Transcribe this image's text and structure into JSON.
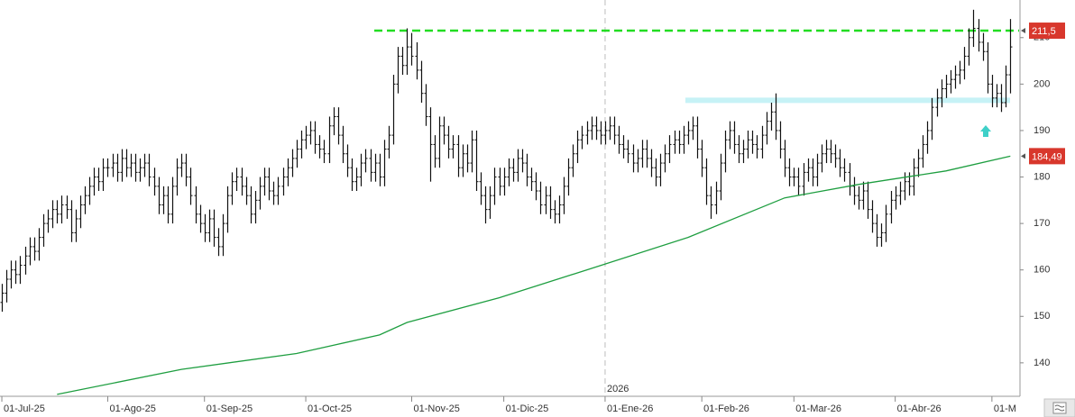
{
  "chart_data": {
    "type": "ohlc",
    "ylim": [
      132.8,
      218.1
    ],
    "yticks": [
      140,
      150,
      160,
      170,
      180,
      190,
      200,
      210
    ],
    "xlim": [
      -0.4,
      220.9
    ],
    "xticks": [
      {
        "value": 0,
        "label": "01-Jul-25"
      },
      {
        "value": 23,
        "label": "01-Ago-25"
      },
      {
        "value": 44,
        "label": "01-Sep-25"
      },
      {
        "value": 66,
        "label": "01-Oct-25"
      },
      {
        "value": 89,
        "label": "01-Nov-25"
      },
      {
        "value": 109,
        "label": "01-Dic-25"
      },
      {
        "value": 131,
        "label": "01-Ene-26"
      },
      {
        "value": 152,
        "label": "01-Feb-26"
      },
      {
        "value": 172,
        "label": "01-Mar-26"
      },
      {
        "value": 194,
        "label": "01-Abr-26"
      },
      {
        "value": 215,
        "label": "01-M"
      }
    ],
    "year_marks": [
      {
        "value": 131,
        "label": "2026"
      }
    ],
    "bars": {
      "color": "#111111",
      "open": [
        153,
        155,
        158,
        160,
        159,
        161,
        163,
        165,
        164,
        167,
        170,
        171,
        173,
        172,
        174,
        173,
        168,
        171,
        174,
        176,
        178,
        180,
        179,
        182,
        182,
        183,
        181,
        184,
        182,
        183,
        181,
        182,
        183,
        180,
        178,
        174,
        176,
        172,
        178,
        182,
        183,
        180,
        176,
        172,
        170,
        168,
        171,
        167,
        165,
        170,
        176,
        179,
        180,
        178,
        176,
        172,
        175,
        178,
        180,
        177,
        176,
        178,
        180,
        182,
        184,
        186,
        188,
        189,
        190,
        187,
        186,
        185,
        191,
        193,
        189,
        185,
        182,
        179,
        180,
        183,
        184,
        181,
        183,
        180,
        186,
        189,
        200,
        206,
        204,
        208,
        206,
        203,
        198,
        193,
        187,
        184,
        191,
        189,
        186,
        187,
        182,
        185,
        183,
        188,
        179,
        176,
        173,
        176,
        180,
        178,
        180,
        182,
        181,
        184,
        183,
        180,
        179,
        177,
        174,
        176,
        173,
        172,
        174,
        178,
        182,
        185,
        188,
        189,
        190,
        191,
        190,
        189,
        190,
        191,
        189,
        187,
        186,
        185,
        183,
        184,
        186,
        184,
        182,
        180,
        183,
        185,
        187,
        188,
        187,
        189,
        190,
        191,
        186,
        182,
        176,
        174,
        177,
        183,
        188,
        190,
        187,
        185,
        186,
        188,
        187,
        186,
        189,
        192,
        194,
        190,
        186,
        182,
        180,
        180,
        178,
        181,
        182,
        180,
        183,
        185,
        186,
        185,
        184,
        182,
        181,
        178,
        176,
        175,
        177,
        173,
        170,
        167,
        168,
        172,
        175,
        176,
        177,
        179,
        178,
        182,
        184,
        187,
        190,
        195,
        197,
        199,
        200,
        201,
        202,
        203,
        206,
        210,
        212,
        209,
        207,
        200,
        197,
        198,
        196,
        202
      ],
      "high": [
        157,
        160,
        162,
        162,
        163,
        165,
        167,
        167,
        169,
        172,
        173,
        175,
        175,
        176,
        176,
        175,
        173,
        176,
        178,
        180,
        182,
        182,
        184,
        184,
        185,
        185,
        186,
        186,
        185,
        185,
        184,
        185,
        185,
        182,
        180,
        178,
        178,
        180,
        184,
        185,
        185,
        182,
        178,
        174,
        172,
        173,
        173,
        169,
        172,
        178,
        181,
        182,
        182,
        180,
        178,
        177,
        180,
        182,
        182,
        179,
        180,
        182,
        184,
        186,
        188,
        190,
        191,
        192,
        192,
        189,
        188,
        193,
        195,
        195,
        191,
        187,
        184,
        182,
        185,
        186,
        186,
        185,
        185,
        188,
        191,
        202,
        208,
        208,
        212,
        211,
        209,
        205,
        200,
        195,
        189,
        193,
        193,
        191,
        189,
        189,
        187,
        187,
        190,
        190,
        181,
        178,
        178,
        182,
        182,
        182,
        184,
        184,
        186,
        186,
        185,
        182,
        181,
        179,
        178,
        178,
        175,
        176,
        180,
        184,
        187,
        190,
        191,
        192,
        193,
        193,
        192,
        192,
        193,
        193,
        191,
        189,
        188,
        187,
        186,
        188,
        188,
        186,
        184,
        185,
        187,
        189,
        190,
        190,
        191,
        192,
        193,
        193,
        188,
        184,
        178,
        179,
        185,
        190,
        192,
        192,
        189,
        188,
        190,
        190,
        189,
        191,
        194,
        196,
        198,
        192,
        188,
        184,
        182,
        182,
        183,
        184,
        184,
        185,
        187,
        188,
        188,
        187,
        186,
        184,
        183,
        180,
        178,
        179,
        179,
        175,
        172,
        170,
        174,
        177,
        178,
        179,
        181,
        181,
        184,
        186,
        189,
        192,
        197,
        199,
        201,
        202,
        203,
        204,
        205,
        208,
        212,
        216,
        214,
        211,
        209,
        202,
        200,
        200,
        204,
        214
      ],
      "low": [
        151,
        153,
        156,
        157,
        157,
        159,
        161,
        162,
        162,
        165,
        168,
        169,
        170,
        170,
        171,
        166,
        166,
        169,
        172,
        174,
        176,
        177,
        177,
        180,
        180,
        179,
        179,
        180,
        180,
        179,
        179,
        180,
        178,
        176,
        172,
        172,
        170,
        170,
        176,
        180,
        178,
        174,
        170,
        168,
        166,
        166,
        165,
        163,
        163,
        168,
        174,
        177,
        176,
        174,
        170,
        170,
        173,
        176,
        175,
        174,
        174,
        176,
        178,
        180,
        182,
        184,
        186,
        187,
        185,
        184,
        183,
        183,
        189,
        187,
        183,
        180,
        177,
        177,
        178,
        181,
        179,
        179,
        178,
        178,
        184,
        187,
        198,
        202,
        202,
        204,
        201,
        196,
        191,
        179,
        182,
        182,
        187,
        184,
        184,
        180,
        180,
        181,
        181,
        177,
        174,
        170,
        171,
        174,
        176,
        176,
        178,
        179,
        179,
        181,
        178,
        177,
        175,
        172,
        172,
        171,
        170,
        170,
        172,
        176,
        180,
        183,
        186,
        187,
        188,
        188,
        187,
        187,
        188,
        187,
        185,
        184,
        183,
        181,
        181,
        182,
        182,
        180,
        178,
        178,
        181,
        183,
        185,
        185,
        185,
        187,
        188,
        184,
        180,
        174,
        171,
        172,
        175,
        181,
        186,
        185,
        183,
        183,
        184,
        185,
        184,
        184,
        187,
        190,
        188,
        184,
        180,
        178,
        178,
        176,
        176,
        179,
        178,
        178,
        181,
        183,
        183,
        182,
        180,
        179,
        176,
        174,
        173,
        173,
        171,
        168,
        165,
        165,
        166,
        170,
        173,
        174,
        175,
        176,
        176,
        180,
        182,
        185,
        188,
        193,
        195,
        197,
        198,
        199,
        200,
        201,
        204,
        208,
        207,
        205,
        198,
        195,
        195,
        194,
        195,
        198
      ],
      "close": [
        155,
        158,
        160,
        159,
        161,
        163,
        165,
        164,
        167,
        170,
        171,
        173,
        172,
        174,
        173,
        168,
        171,
        174,
        176,
        178,
        180,
        179,
        182,
        182,
        183,
        181,
        184,
        182,
        183,
        181,
        182,
        183,
        180,
        178,
        174,
        176,
        172,
        178,
        182,
        183,
        180,
        176,
        172,
        170,
        168,
        171,
        167,
        165,
        170,
        176,
        179,
        180,
        178,
        176,
        172,
        175,
        178,
        180,
        177,
        176,
        178,
        180,
        182,
        184,
        186,
        188,
        189,
        190,
        187,
        186,
        185,
        191,
        193,
        189,
        185,
        182,
        179,
        180,
        183,
        184,
        181,
        183,
        180,
        186,
        189,
        200,
        206,
        204,
        208,
        206,
        203,
        198,
        193,
        187,
        184,
        191,
        189,
        186,
        187,
        182,
        185,
        183,
        188,
        179,
        176,
        173,
        176,
        180,
        178,
        180,
        182,
        181,
        184,
        183,
        180,
        179,
        177,
        174,
        176,
        173,
        172,
        174,
        178,
        182,
        185,
        188,
        189,
        190,
        191,
        190,
        189,
        190,
        191,
        189,
        187,
        186,
        185,
        183,
        184,
        186,
        184,
        182,
        180,
        183,
        185,
        187,
        188,
        187,
        189,
        190,
        191,
        186,
        182,
        176,
        174,
        177,
        183,
        188,
        190,
        187,
        185,
        186,
        188,
        187,
        186,
        189,
        192,
        194,
        190,
        186,
        182,
        180,
        180,
        178,
        181,
        182,
        180,
        183,
        185,
        186,
        185,
        184,
        182,
        181,
        178,
        176,
        175,
        177,
        173,
        170,
        167,
        168,
        172,
        175,
        176,
        177,
        179,
        178,
        182,
        184,
        187,
        190,
        195,
        197,
        199,
        200,
        201,
        202,
        203,
        206,
        210,
        212,
        209,
        207,
        200,
        197,
        198,
        196,
        202,
        208
      ]
    },
    "ma": {
      "color": "#1e9e40",
      "x": [
        12,
        39,
        64,
        82,
        88,
        108,
        127,
        149,
        170,
        186,
        205,
        219
      ],
      "values": [
        133.2,
        138.6,
        142,
        146,
        148.7,
        154,
        160,
        167,
        175.5,
        178.4,
        181.3,
        184.49
      ],
      "value_labels": [
        null,
        null,
        null,
        null,
        null,
        null,
        null,
        null,
        null,
        null,
        null,
        "184,49"
      ]
    },
    "levels": [
      {
        "value": 211.5,
        "label": "211,5",
        "color": "#22dd22",
        "style": "dashed"
      },
      {
        "value": 196.5,
        "color": "#c6f2f6",
        "style": "band"
      }
    ],
    "tag_color": "#d8372c"
  }
}
